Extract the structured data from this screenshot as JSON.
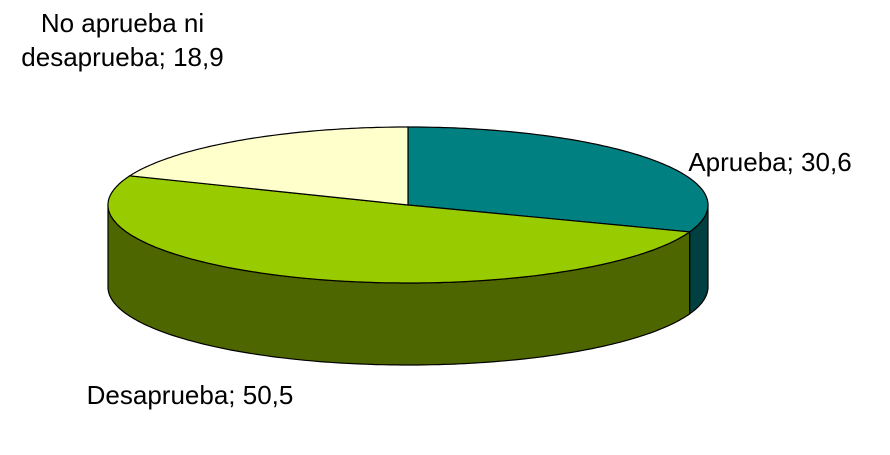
{
  "chart_data": {
    "type": "pie3d",
    "values": [
      30.6,
      50.5,
      18.9
    ],
    "value_labels": [
      "Aprueba; 30,6",
      "Desaprueba; 50,5",
      "No aprueba ni desaprueba; 18,9"
    ],
    "colors": [
      "#008080",
      "#99cc00",
      "#ffffcc"
    ],
    "side_colors": [
      "#004040",
      "#4d6600",
      "#b3b38f"
    ]
  }
}
